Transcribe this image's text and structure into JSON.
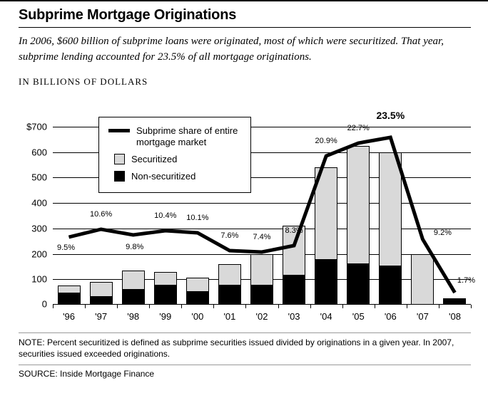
{
  "header": {
    "title": "Subprime Mortgage Originations",
    "intro": "In 2006, $600 billion of subprime loans were originated, most of which were securitized. That year, subprime lending accounted for 23.5% of all mortgage originations."
  },
  "axis_heading": "IN BILLIONS OF DOLLARS",
  "chart_data": {
    "type": "combo",
    "subtype": "stacked-bar-with-line",
    "categories": [
      "'96",
      "'97",
      "'98",
      "'99",
      "'00",
      "'01",
      "'02",
      "'03",
      "'04",
      "'05",
      "'06",
      "'07",
      "'08"
    ],
    "bar_series": [
      {
        "name": "Securitized",
        "color": "#d9d9d9",
        "values": [
          30,
          60,
          75,
          55,
          55,
          85,
          125,
          195,
          365,
          465,
          450,
          200,
          0
        ]
      },
      {
        "name": "Non-securitized",
        "color": "#000000",
        "values": [
          45,
          30,
          60,
          75,
          50,
          75,
          75,
          115,
          175,
          160,
          150,
          0,
          25
        ]
      }
    ],
    "line_series": {
      "name": "Subprime share of entire mortgage market",
      "values": [
        9.5,
        10.6,
        9.8,
        10.4,
        10.1,
        7.6,
        7.4,
        8.3,
        20.9,
        22.7,
        23.5,
        9.2,
        1.7
      ],
      "labels": [
        "9.5%",
        "10.6%",
        "9.8%",
        "10.4%",
        "10.1%",
        "7.6%",
        "7.4%",
        "8.3%",
        "20.9%",
        "22.7%",
        "23.5%",
        "9.2%",
        "1.7%"
      ],
      "emphasis_index": 10,
      "percent_to_dollar_scale": 28,
      "color": "#000000"
    },
    "ylim": [
      0,
      700
    ],
    "ytick_step": 100,
    "ytick_labels": [
      "0",
      "100",
      "200",
      "300",
      "400",
      "500",
      "600",
      "$700"
    ],
    "grid": true,
    "legend_position": "top-left",
    "legend": {
      "line_label": "Subprime share of entire mortgage market",
      "securitized_label": "Securitized",
      "nonsecuritized_label": "Non-securitized"
    }
  },
  "footer": {
    "note": "NOTE: Percent securitized is defined as subprime securities issued divided by originations in a given year. In 2007, securities issued exceeded originations.",
    "source": "SOURCE: Inside Mortgage Finance"
  },
  "colors": {
    "securitized": "#d9d9d9",
    "nonsecuritized": "#000000",
    "line": "#000000",
    "grid": "#000000",
    "background": "#ffffff"
  }
}
